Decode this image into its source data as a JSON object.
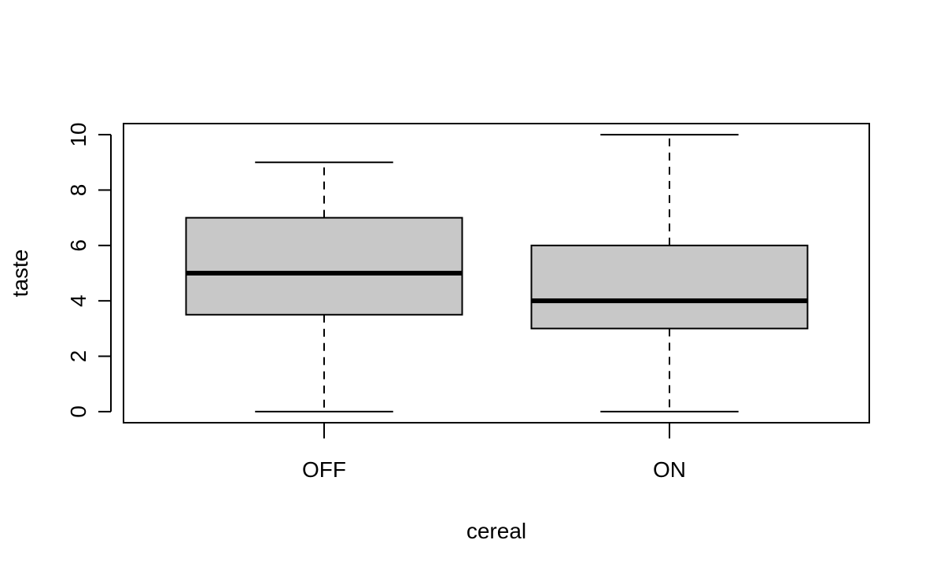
{
  "chart_data": {
    "type": "boxplot",
    "xlabel": "cereal",
    "ylabel": "taste",
    "ylim": [
      -0.4,
      10.4
    ],
    "yticks": [
      0,
      2,
      4,
      6,
      8,
      10
    ],
    "categories": [
      "OFF",
      "ON"
    ],
    "boxes": [
      {
        "category": "OFF",
        "min": 0,
        "q1": 3.5,
        "median": 5,
        "q3": 7,
        "max": 9
      },
      {
        "category": "ON",
        "min": 0,
        "q1": 3,
        "median": 4,
        "q3": 6,
        "max": 10
      }
    ],
    "box_fill": "#c8c8c8",
    "line_color": "#000000",
    "grid": false
  }
}
